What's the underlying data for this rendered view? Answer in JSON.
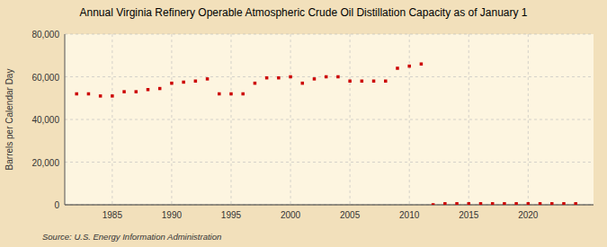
{
  "chart_data": {
    "type": "scatter",
    "title": "Annual Virginia Refinery Operable Atmospheric Crude Oil Distillation Capacity as of January 1",
    "ylabel": "Barrels per Calendar Day",
    "source": "Source: U.S. Energy Information Administration",
    "color": "#cc0000",
    "marker": "square",
    "grid": true,
    "x": [
      1982,
      1983,
      1984,
      1985,
      1986,
      1987,
      1988,
      1989,
      1990,
      1991,
      1992,
      1993,
      1994,
      1995,
      1996,
      1997,
      1998,
      1999,
      2000,
      2001,
      2002,
      2003,
      2004,
      2005,
      2006,
      2007,
      2008,
      2009,
      2010,
      2011,
      2012,
      2013,
      2014,
      2015,
      2016,
      2017,
      2018,
      2019,
      2020,
      2021,
      2022,
      2023,
      2024
    ],
    "values": [
      52000,
      52000,
      51000,
      51000,
      53000,
      53000,
      54000,
      54500,
      57000,
      57500,
      58000,
      59000,
      52000,
      52000,
      52000,
      57000,
      59500,
      59500,
      60000,
      57000,
      59000,
      60000,
      60000,
      58000,
      58000,
      58000,
      58000,
      64000,
      65000,
      66000,
      0,
      500,
      500,
      500,
      500,
      500,
      500,
      500,
      500,
      500,
      500,
      500,
      500
    ],
    "xlim": [
      1981,
      2025.5
    ],
    "ylim": [
      0,
      80000
    ],
    "xticks": [
      1985,
      1990,
      1995,
      2000,
      2005,
      2010,
      2015,
      2020
    ],
    "yticks": [
      0,
      {
        "value": 20000,
        "label": "20,000"
      },
      {
        "value": 40000,
        "label": "40,000"
      },
      {
        "value": 60000,
        "label": "60,000"
      },
      {
        "value": 80000,
        "label": "80,000"
      }
    ]
  }
}
